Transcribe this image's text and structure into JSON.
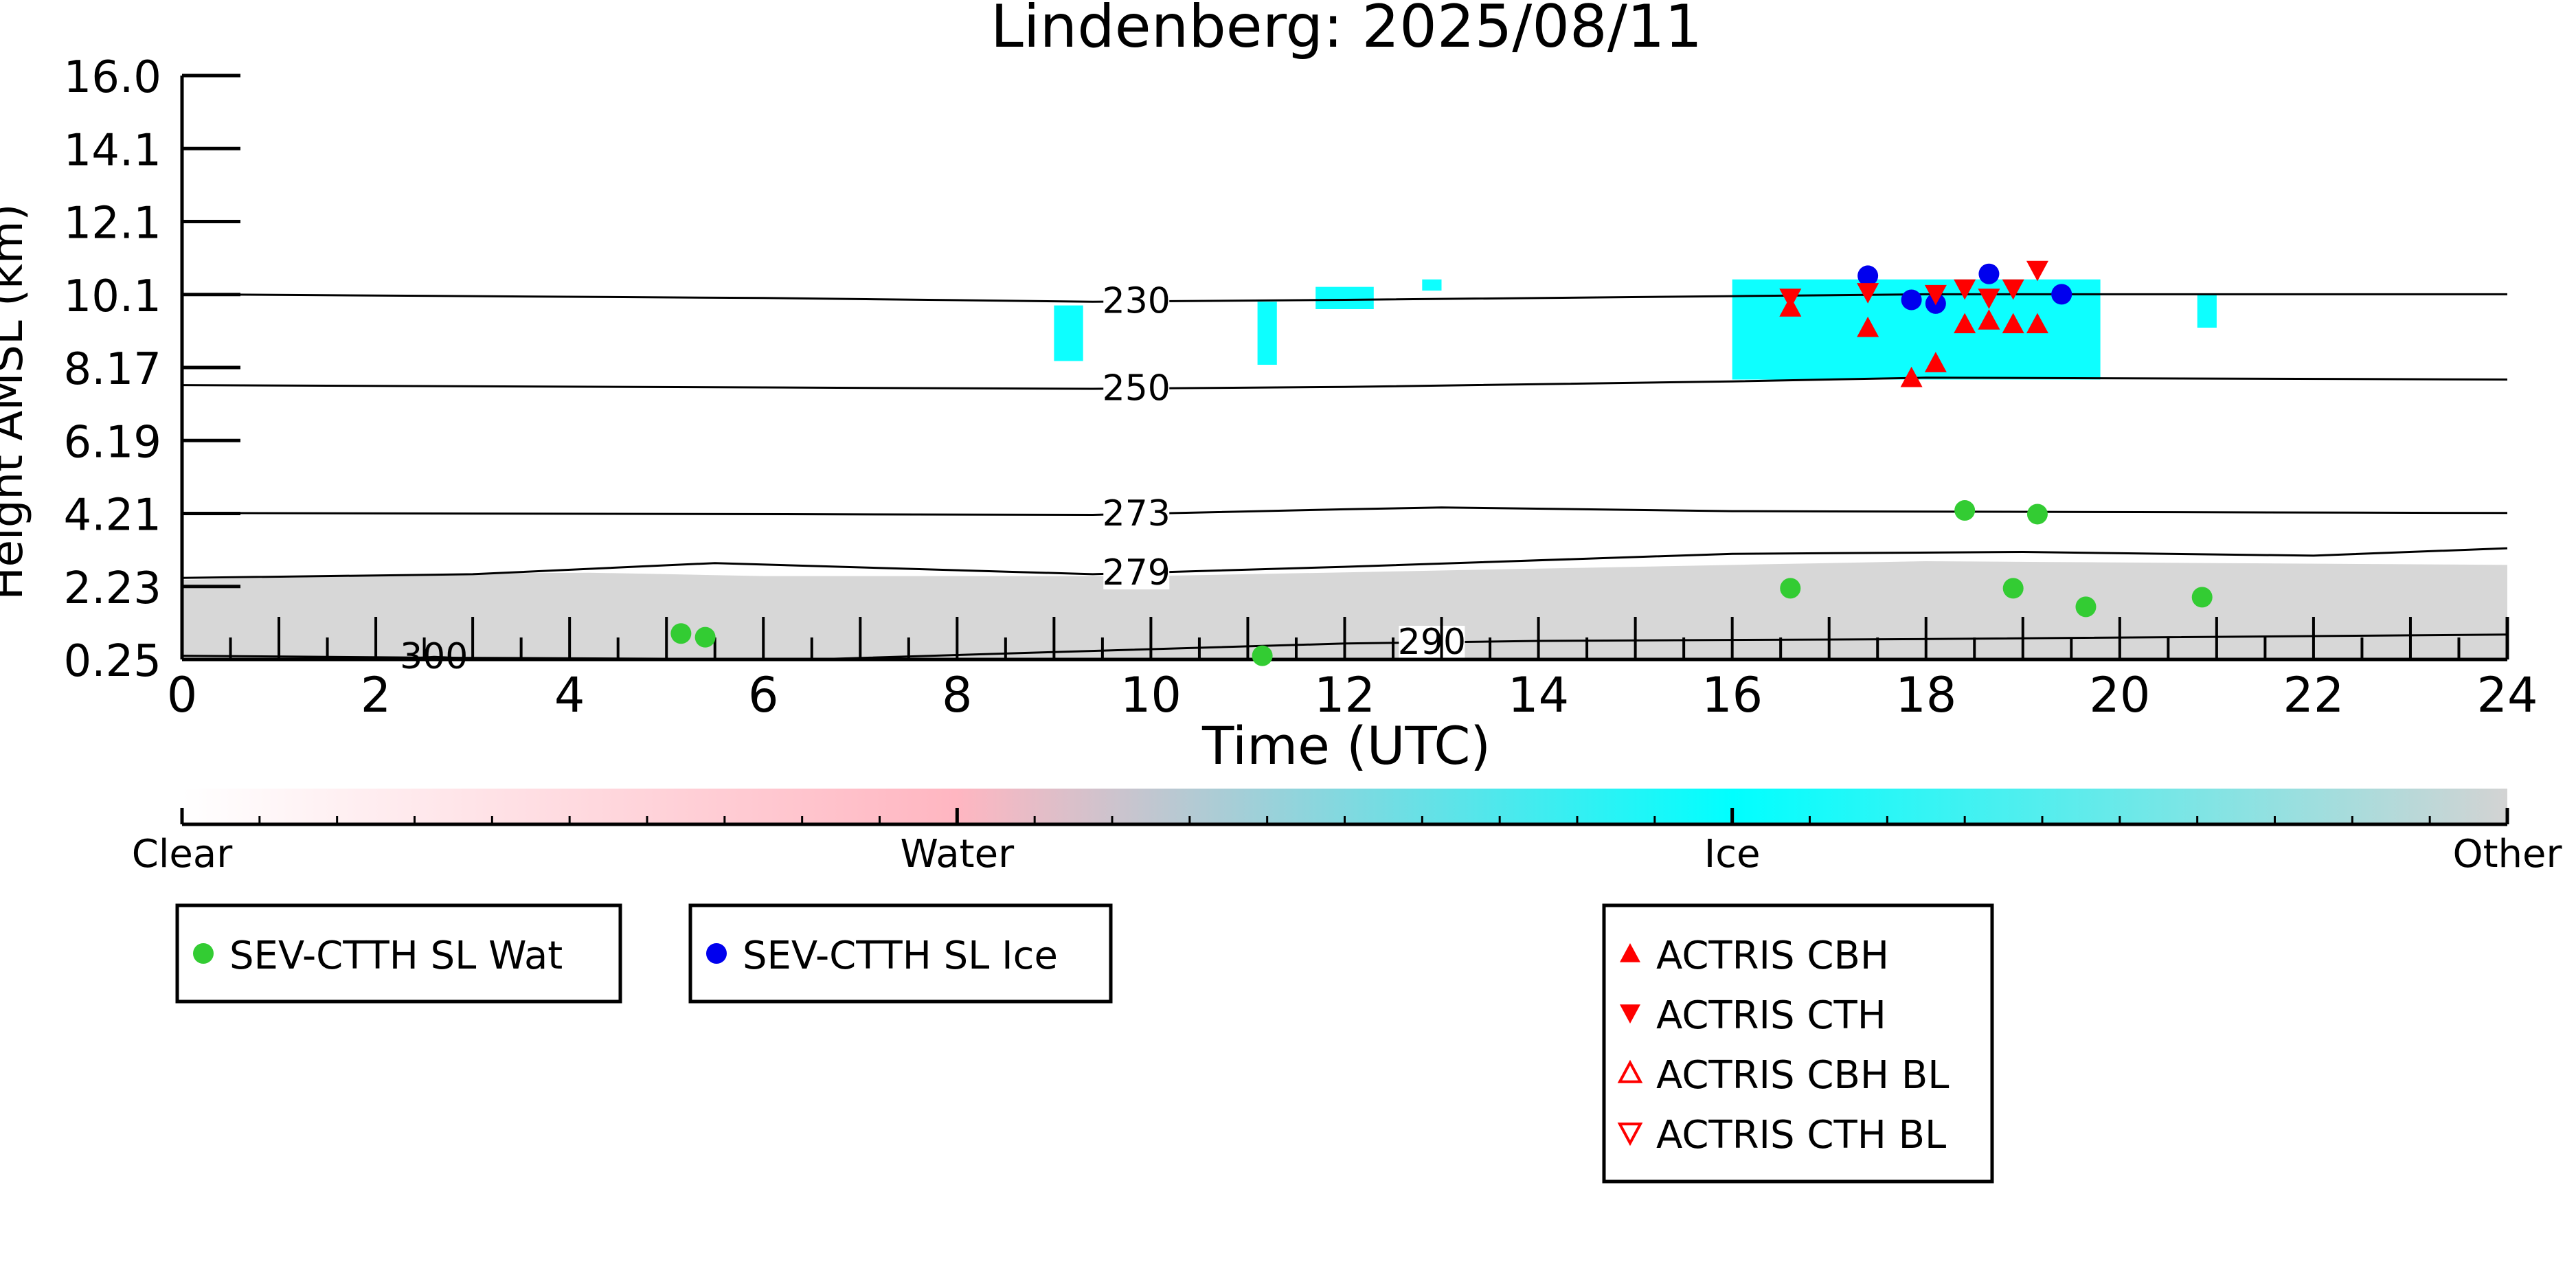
{
  "chart_data": {
    "type": "scatter",
    "title": "Lindenberg: 2025/08/11",
    "xlabel": "Time (UTC)",
    "ylabel": "Height AMSL (km)",
    "xlim": [
      0,
      24
    ],
    "ylim": [
      0.25,
      16.0
    ],
    "x_ticks": [
      "0",
      "2",
      "4",
      "6",
      "8",
      "10",
      "12",
      "14",
      "16",
      "18",
      "20",
      "22",
      "24"
    ],
    "y_ticks": [
      "0.25",
      "2.23",
      "4.21",
      "6.19",
      "8.17",
      "10.1",
      "12.1",
      "14.1",
      "16.0"
    ],
    "grid": false,
    "colorbar": {
      "labels": [
        "Clear",
        "Water",
        "Ice",
        "Other"
      ],
      "colors": [
        "#ffffff",
        "#ffb6c1",
        "#00ffff",
        "#d3d3d3"
      ]
    },
    "isotherms": [
      {
        "label": "230",
        "points": [
          [
            0,
            10.1
          ],
          [
            6,
            10.0
          ],
          [
            9.4,
            9.9
          ],
          [
            12,
            9.95
          ],
          [
            16,
            10.05
          ],
          [
            18,
            10.1
          ],
          [
            24,
            10.1
          ]
        ]
      },
      {
        "label": "250",
        "points": [
          [
            0,
            7.65
          ],
          [
            9.4,
            7.55
          ],
          [
            12,
            7.6
          ],
          [
            16,
            7.75
          ],
          [
            18,
            7.85
          ],
          [
            24,
            7.8
          ]
        ]
      },
      {
        "label": "273",
        "points": [
          [
            0,
            4.2
          ],
          [
            4,
            4.18
          ],
          [
            9.4,
            4.15
          ],
          [
            12,
            4.3
          ],
          [
            13,
            4.35
          ],
          [
            16,
            4.25
          ],
          [
            24,
            4.2
          ]
        ]
      },
      {
        "label": "279",
        "points": [
          [
            0,
            2.45
          ],
          [
            3,
            2.55
          ],
          [
            5.5,
            2.85
          ],
          [
            9.4,
            2.55
          ],
          [
            12,
            2.75
          ],
          [
            16,
            3.1
          ],
          [
            19,
            3.15
          ],
          [
            22,
            3.05
          ],
          [
            24,
            3.25
          ]
        ]
      },
      {
        "label": "290",
        "points": [
          [
            0,
            0.35
          ],
          [
            2.4,
            0.3
          ],
          [
            6.5,
            0.25
          ],
          [
            9,
            0.45
          ],
          [
            12,
            0.68
          ],
          [
            14,
            0.75
          ],
          [
            18,
            0.8
          ],
          [
            24,
            0.92
          ]
        ]
      },
      {
        "label": "300",
        "points": [
          [
            2.2,
            0.25
          ],
          [
            2.6,
            0.32
          ],
          [
            3.0,
            0.27
          ]
        ]
      }
    ],
    "cloud_regions": [
      {
        "class": "Other",
        "x_range": [
          0,
          24
        ],
        "base_km": 0.25,
        "top_km": [
          [
            0,
            2.4
          ],
          [
            4,
            2.6
          ],
          [
            6,
            2.5
          ],
          [
            10,
            2.5
          ],
          [
            14,
            2.7
          ],
          [
            18,
            2.9
          ],
          [
            24,
            2.8
          ]
        ]
      },
      {
        "class": "Ice",
        "x_range": [
          9.0,
          9.3
        ],
        "base_km": 8.3,
        "top_km": 9.8
      },
      {
        "class": "Ice",
        "x_range": [
          11.1,
          11.3
        ],
        "base_km": 8.2,
        "top_km": 9.9
      },
      {
        "class": "Ice",
        "x_range": [
          11.7,
          12.3
        ],
        "base_km": 9.7,
        "top_km": 10.3
      },
      {
        "class": "Ice",
        "x_range": [
          12.8,
          13.0
        ],
        "base_km": 10.2,
        "top_km": 10.5
      },
      {
        "class": "Ice",
        "x_range": [
          16.0,
          19.8
        ],
        "base_km": 7.8,
        "top_km": 10.5
      },
      {
        "class": "Ice",
        "x_range": [
          20.8,
          21.0
        ],
        "base_km": 9.2,
        "top_km": 10.1
      }
    ],
    "series": [
      {
        "name": "SEV-CTTH SL Wat",
        "marker": "circle",
        "color": "#33cc33",
        "points": [
          [
            5.15,
            0.95
          ],
          [
            5.4,
            0.85
          ],
          [
            11.15,
            0.35
          ],
          [
            16.6,
            2.17
          ],
          [
            18.4,
            4.27
          ],
          [
            18.9,
            2.17
          ],
          [
            19.15,
            4.17
          ],
          [
            19.65,
            1.67
          ],
          [
            20.85,
            1.93
          ]
        ]
      },
      {
        "name": "SEV-CTTH SL Ice",
        "marker": "circle",
        "color": "#0000ee",
        "points": [
          [
            17.4,
            10.6
          ],
          [
            17.85,
            9.95
          ],
          [
            18.1,
            9.85
          ],
          [
            18.65,
            10.65
          ],
          [
            19.4,
            10.1
          ]
        ]
      },
      {
        "name": "ACTRIS CBH",
        "marker": "triangle-up",
        "color": "#ff0000",
        "points": [
          [
            16.6,
            9.75
          ],
          [
            17.4,
            9.2
          ],
          [
            17.85,
            7.85
          ],
          [
            18.1,
            8.25
          ],
          [
            18.4,
            9.3
          ],
          [
            18.65,
            9.4
          ],
          [
            18.9,
            9.3
          ],
          [
            19.15,
            9.3
          ]
        ]
      },
      {
        "name": "ACTRIS CTH",
        "marker": "triangle-down",
        "color": "#ff0000",
        "points": [
          [
            16.6,
            10.0
          ],
          [
            17.4,
            10.15
          ],
          [
            18.1,
            10.1
          ],
          [
            18.4,
            10.25
          ],
          [
            18.65,
            10.0
          ],
          [
            18.9,
            10.25
          ],
          [
            19.15,
            10.75
          ]
        ]
      },
      {
        "name": "ACTRIS CBH BL",
        "marker": "triangle-up-open",
        "color": "#ff0000",
        "points": []
      },
      {
        "name": "ACTRIS CTH BL",
        "marker": "triangle-down-open",
        "color": "#ff0000",
        "points": []
      }
    ],
    "legends": [
      [
        "SEV-CTTH SL Wat"
      ],
      [
        "SEV-CTTH SL Ice"
      ],
      [
        "ACTRIS CBH",
        "ACTRIS CTH",
        "ACTRIS CBH BL",
        "ACTRIS CTH BL"
      ]
    ]
  }
}
